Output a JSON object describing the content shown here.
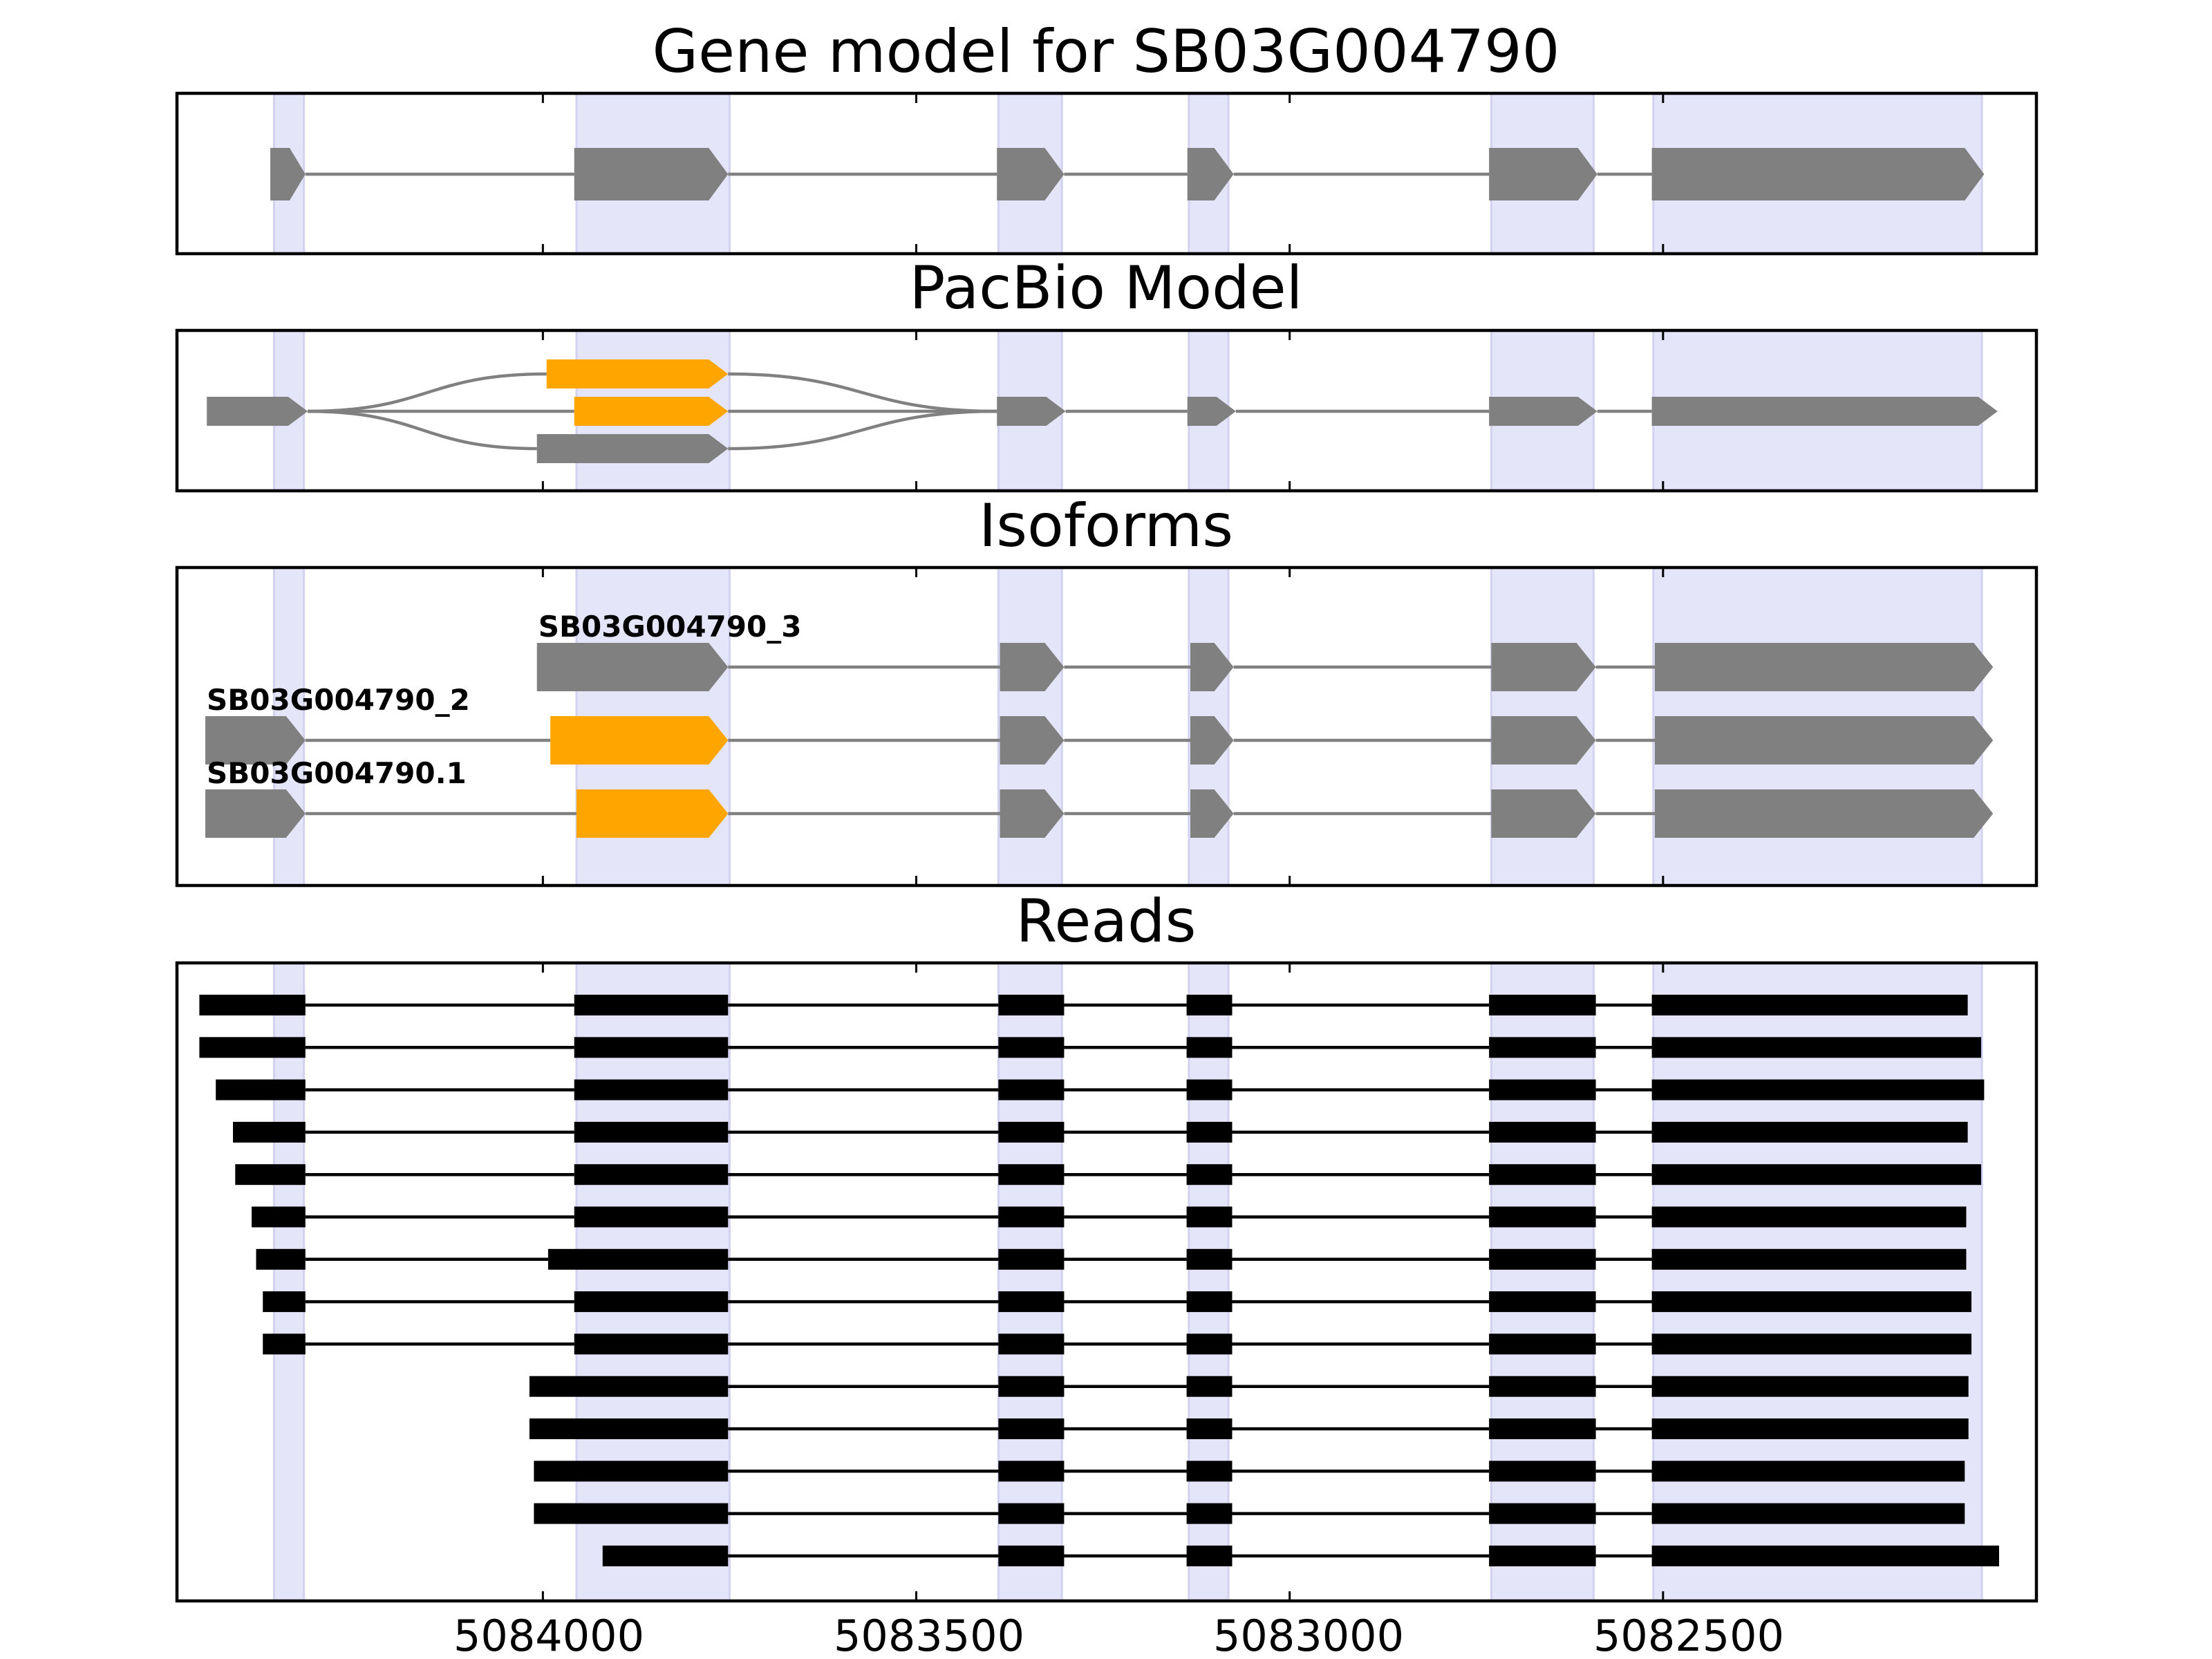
{
  "colors": {
    "exon": "#808080",
    "alternative_exon": "#FFA500",
    "read": "#000000",
    "highlight": "#E5E5FA",
    "highlight_edge": "#D2D2F0"
  },
  "chart_data": {
    "type": "gene_structure",
    "xlim": [
      5084490,
      5082000
    ],
    "xticks": [
      5084000,
      5083500,
      5083000,
      5082500
    ],
    "xtick_labels": [
      "5084000",
      "5083500",
      "5083000",
      "5082500"
    ],
    "highlight_regions": [
      [
        5084360,
        5084320
      ],
      [
        5083955,
        5083750
      ],
      [
        5083390,
        5083305
      ],
      [
        5083135,
        5083082
      ],
      [
        5082730,
        5082593
      ],
      [
        5082513,
        5082073
      ]
    ],
    "panels": [
      {
        "id": "gene-model",
        "title": "Gene model for SB03G004790",
        "rows": [
          {
            "exons": [
              [
                5084365,
                5084318
              ],
              [
                5083958,
                5083752
              ],
              [
                5083392,
                5083302
              ],
              [
                5083137,
                5083075
              ],
              [
                5082733,
                5082588
              ],
              [
                5082515,
                5082070
              ]
            ],
            "color": "exon"
          }
        ]
      },
      {
        "id": "pacbio-model",
        "title": "PacBio Model",
        "graph": {
          "lanes": [
            -1,
            0,
            1
          ],
          "nodes": [
            {
              "id": "n1",
              "span": [
                5084450,
                5084315
              ],
              "lane": 0,
              "color": "exon"
            },
            {
              "id": "n2a",
              "span": [
                5083995,
                5083752
              ],
              "lane": -1,
              "color": "alternative_exon"
            },
            {
              "id": "n2b",
              "span": [
                5083958,
                5083752
              ],
              "lane": 0,
              "color": "alternative_exon"
            },
            {
              "id": "n2c",
              "span": [
                5084008,
                5083752
              ],
              "lane": 1,
              "color": "exon"
            },
            {
              "id": "n3",
              "span": [
                5083392,
                5083300
              ],
              "lane": 0,
              "color": "exon"
            },
            {
              "id": "n4",
              "span": [
                5083137,
                5083072
              ],
              "lane": 0,
              "color": "exon"
            },
            {
              "id": "n5",
              "span": [
                5082733,
                5082588
              ],
              "lane": 0,
              "color": "exon"
            },
            {
              "id": "n6",
              "span": [
                5082515,
                5082052
              ],
              "lane": 0,
              "color": "exon"
            }
          ],
          "edges": [
            [
              "n1",
              "n2a"
            ],
            [
              "n1",
              "n2b"
            ],
            [
              "n1",
              "n2c"
            ],
            [
              "n2a",
              "n3"
            ],
            [
              "n2b",
              "n3"
            ],
            [
              "n2c",
              "n3"
            ],
            [
              "n3",
              "n4"
            ],
            [
              "n4",
              "n5"
            ],
            [
              "n5",
              "n6"
            ]
          ]
        }
      },
      {
        "id": "isoforms",
        "title": "Isoforms",
        "rows": [
          {
            "label": "SB03G004790_3",
            "exons": [
              [
                5084008,
                5083752
              ],
              [
                5083388,
                5083302
              ],
              [
                5083133,
                5083075
              ],
              [
                5082730,
                5082590
              ],
              [
                5082511,
                5082058
              ]
            ],
            "highlight_exons": []
          },
          {
            "label": "SB03G004790_2",
            "exons": [
              [
                5084452,
                5084318
              ],
              [
                5083990,
                5083752
              ],
              [
                5083388,
                5083302
              ],
              [
                5083133,
                5083075
              ],
              [
                5082730,
                5082590
              ],
              [
                5082511,
                5082058
              ]
            ],
            "highlight_exons": [
              1
            ]
          },
          {
            "label": "SB03G004790.1",
            "exons": [
              [
                5084452,
                5084318
              ],
              [
                5083955,
                5083752
              ],
              [
                5083388,
                5083302
              ],
              [
                5083133,
                5083075
              ],
              [
                5082730,
                5082590
              ],
              [
                5082511,
                5082058
              ]
            ],
            "highlight_exons": [
              1
            ]
          }
        ]
      },
      {
        "id": "reads",
        "title": "Reads",
        "rows": [
          {
            "exons": [
              [
                5084460,
                5084318
              ],
              [
                5083958,
                5083752
              ],
              [
                5083390,
                5083302
              ],
              [
                5083138,
                5083077
              ],
              [
                5082733,
                5082590
              ],
              [
                5082515,
                5082092
              ]
            ]
          },
          {
            "exons": [
              [
                5084460,
                5084318
              ],
              [
                5083958,
                5083752
              ],
              [
                5083390,
                5083302
              ],
              [
                5083138,
                5083077
              ],
              [
                5082733,
                5082590
              ],
              [
                5082515,
                5082074
              ]
            ]
          },
          {
            "exons": [
              [
                5084438,
                5084318
              ],
              [
                5083958,
                5083752
              ],
              [
                5083390,
                5083302
              ],
              [
                5083138,
                5083077
              ],
              [
                5082733,
                5082590
              ],
              [
                5082515,
                5082070
              ]
            ]
          },
          {
            "exons": [
              [
                5084415,
                5084318
              ],
              [
                5083958,
                5083752
              ],
              [
                5083390,
                5083302
              ],
              [
                5083138,
                5083077
              ],
              [
                5082733,
                5082590
              ],
              [
                5082515,
                5082092
              ]
            ]
          },
          {
            "exons": [
              [
                5084412,
                5084318
              ],
              [
                5083958,
                5083752
              ],
              [
                5083390,
                5083302
              ],
              [
                5083138,
                5083077
              ],
              [
                5082733,
                5082590
              ],
              [
                5082515,
                5082074
              ]
            ]
          },
          {
            "exons": [
              [
                5084390,
                5084318
              ],
              [
                5083958,
                5083752
              ],
              [
                5083390,
                5083302
              ],
              [
                5083138,
                5083077
              ],
              [
                5082733,
                5082590
              ],
              [
                5082515,
                5082094
              ]
            ]
          },
          {
            "exons": [
              [
                5084384,
                5084318
              ],
              [
                5083993,
                5083752
              ],
              [
                5083390,
                5083302
              ],
              [
                5083138,
                5083077
              ],
              [
                5082733,
                5082590
              ],
              [
                5082515,
                5082094
              ]
            ]
          },
          {
            "exons": [
              [
                5084375,
                5084318
              ],
              [
                5083958,
                5083752
              ],
              [
                5083390,
                5083302
              ],
              [
                5083138,
                5083077
              ],
              [
                5082733,
                5082590
              ],
              [
                5082515,
                5082087
              ]
            ]
          },
          {
            "exons": [
              [
                5084375,
                5084318
              ],
              [
                5083958,
                5083752
              ],
              [
                5083390,
                5083302
              ],
              [
                5083138,
                5083077
              ],
              [
                5082733,
                5082590
              ],
              [
                5082515,
                5082087
              ]
            ]
          },
          {
            "exons": [
              [
                5084018,
                5083752
              ],
              [
                5083390,
                5083302
              ],
              [
                5083138,
                5083077
              ],
              [
                5082733,
                5082590
              ],
              [
                5082515,
                5082091
              ]
            ]
          },
          {
            "exons": [
              [
                5084018,
                5083752
              ],
              [
                5083390,
                5083302
              ],
              [
                5083138,
                5083077
              ],
              [
                5082733,
                5082590
              ],
              [
                5082515,
                5082091
              ]
            ]
          },
          {
            "exons": [
              [
                5084012,
                5083752
              ],
              [
                5083390,
                5083302
              ],
              [
                5083138,
                5083077
              ],
              [
                5082733,
                5082590
              ],
              [
                5082515,
                5082096
              ]
            ]
          },
          {
            "exons": [
              [
                5084012,
                5083752
              ],
              [
                5083390,
                5083302
              ],
              [
                5083138,
                5083077
              ],
              [
                5082733,
                5082590
              ],
              [
                5082515,
                5082096
              ]
            ]
          },
          {
            "exons": [
              [
                5083920,
                5083752
              ],
              [
                5083390,
                5083302
              ],
              [
                5083138,
                5083077
              ],
              [
                5082733,
                5082590
              ],
              [
                5082515,
                5082050
              ]
            ]
          }
        ]
      }
    ]
  }
}
